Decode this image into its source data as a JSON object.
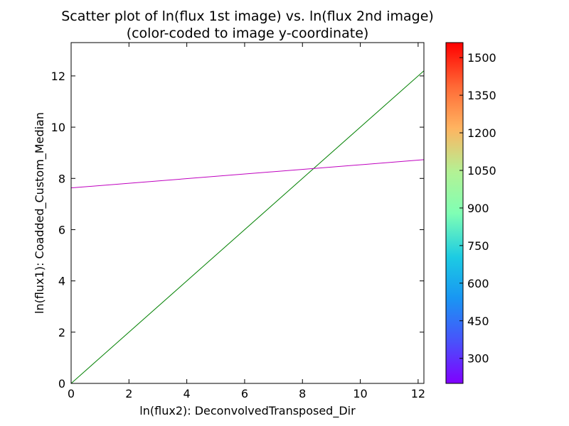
{
  "chart_data": {
    "type": "line",
    "title": "Scatter plot of ln(flux 1st image) vs. ln(flux 2nd image)",
    "subtitle": "(color-coded to image y-coordinate)",
    "xlabel": "ln(flux2): DeconvolvedTransposed_Dir",
    "ylabel": "ln(flux1): Coadded_Custom_Median",
    "xlim": [
      0,
      12.2
    ],
    "ylim": [
      0,
      13.3
    ],
    "x_ticks": [
      0,
      2,
      4,
      6,
      8,
      10,
      12
    ],
    "y_ticks": [
      0,
      2,
      4,
      6,
      8,
      10,
      12
    ],
    "grid": false,
    "series": [
      {
        "color": "#008000",
        "x": [
          0,
          12.2
        ],
        "y": [
          0,
          12.2
        ]
      },
      {
        "color": "#bf00bf",
        "x": [
          0,
          12.2
        ],
        "y": [
          7.63,
          8.73
        ]
      }
    ],
    "colorbar": {
      "colormap": "rainbow",
      "range": [
        200,
        1560
      ],
      "ticks": [
        300,
        450,
        600,
        750,
        900,
        1050,
        1200,
        1350,
        1500
      ]
    }
  }
}
